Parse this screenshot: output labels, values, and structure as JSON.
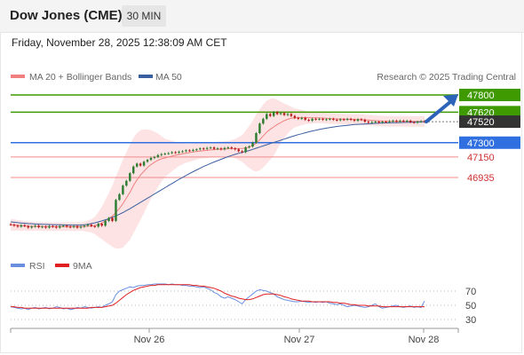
{
  "header": {
    "title": "Dow Jones (CME)",
    "interval": "30 MIN",
    "datetime": "Friday, November 28, 2025 12:38:09 AM CET"
  },
  "legend": {
    "ma20_label": "MA 20 + Bollinger Bands",
    "ma50_label": "MA 50",
    "copyright": "Research © 2025 Trading Central",
    "rsi_label": "RSI",
    "nine_ma_label": "9MA"
  },
  "colors": {
    "ma20": "#f08080",
    "ma50": "#3a5fa0",
    "bands_fill": "#fde3e3",
    "resistance": "#3e9a00",
    "support_blue": "#2f6fe0",
    "support_red": "#f08a8a",
    "price_tag": "#333333",
    "arrow": "#2b63b8",
    "rsi": "#6a8fe0",
    "nine_ma": "#e02020",
    "candle_up": "#2e7d32",
    "candle_down": "#b71c1c"
  },
  "chart_data": [
    {
      "type": "candlestick",
      "ylim": [
        46300,
        48050
      ],
      "x_ticks": [
        "Nov 26",
        "Nov 27",
        "Nov 28"
      ],
      "levels": [
        {
          "value": 47800,
          "label": "47800",
          "kind": "resistance"
        },
        {
          "value": 47620,
          "label": "47620",
          "kind": "resistance"
        },
        {
          "value": 47520,
          "label": "47520",
          "kind": "last-price"
        },
        {
          "value": 47300,
          "label": "47300",
          "kind": "pivot"
        },
        {
          "value": 47150,
          "label": "47150",
          "kind": "support"
        },
        {
          "value": 46935,
          "label": "46935",
          "kind": "support"
        }
      ],
      "close": [
        46440,
        46430,
        46420,
        46435,
        46425,
        46410,
        46420,
        46430,
        46415,
        46420,
        46410,
        46425,
        46420,
        46410,
        46425,
        46430,
        46420,
        46415,
        46425,
        46410,
        46420,
        46430,
        46440,
        46425,
        46420,
        46450,
        46430,
        46480,
        46510,
        46480,
        46700,
        46760,
        46850,
        46900,
        46980,
        47050,
        47080,
        47060,
        47100,
        47120,
        47140,
        47150,
        47170,
        47180,
        47185,
        47190,
        47200,
        47195,
        47205,
        47210,
        47220,
        47215,
        47225,
        47230,
        47240,
        47235,
        47245,
        47250,
        47235,
        47240,
        47230,
        47245,
        47250,
        47240,
        47230,
        47210,
        47200,
        47250,
        47260,
        47300,
        47400,
        47500,
        47550,
        47600,
        47580,
        47620,
        47600,
        47610,
        47590,
        47600,
        47580,
        47560,
        47550,
        47560,
        47540,
        47530,
        47550,
        47545,
        47550,
        47540,
        47545,
        47550,
        47540,
        47535,
        47545,
        47540,
        47550,
        47540,
        47530,
        47545,
        47540,
        47520,
        47510,
        47515,
        47520,
        47510,
        47520,
        47515,
        47525,
        47530,
        47520,
        47530,
        47525,
        47530,
        47515,
        47510,
        47520,
        47525,
        47520
      ],
      "ma20": [
        46440,
        46438,
        46434,
        46430,
        46428,
        46425,
        46423,
        46422,
        46422,
        46421,
        46420,
        46420,
        46420,
        46419,
        46419,
        46420,
        46420,
        46420,
        46420,
        46420,
        46421,
        46422,
        46425,
        46428,
        46432,
        46442,
        46458,
        46480,
        46505,
        46530,
        46570,
        46610,
        46660,
        46720,
        46780,
        46850,
        46910,
        46960,
        47000,
        47040,
        47070,
        47095,
        47115,
        47130,
        47140,
        47150,
        47160,
        47168,
        47176,
        47183,
        47190,
        47196,
        47202,
        47208,
        47212,
        47216,
        47220,
        47224,
        47227,
        47230,
        47232,
        47234,
        47236,
        47238,
        47238,
        47238,
        47240,
        47245,
        47255,
        47270,
        47295,
        47330,
        47370,
        47410,
        47440,
        47465,
        47490,
        47510,
        47530,
        47545,
        47555,
        47560,
        47562,
        47563,
        47563,
        47562,
        47561,
        47560,
        47559,
        47557,
        47555,
        47553,
        47551,
        47549,
        47548,
        47546,
        47545,
        47544,
        47543,
        47542,
        47541,
        47539,
        47536,
        47533,
        47530,
        47528,
        47526,
        47525,
        47524,
        47524,
        47524,
        47524,
        47524,
        47524,
        47523,
        47522,
        47522,
        47522,
        47522
      ],
      "band_width": [
        60,
        60,
        55,
        55,
        50,
        50,
        48,
        45,
        45,
        45,
        45,
        45,
        45,
        45,
        45,
        45,
        45,
        45,
        45,
        45,
        45,
        50,
        60,
        70,
        90,
        130,
        170,
        220,
        270,
        320,
        380,
        420,
        460,
        480,
        500,
        500,
        490,
        470,
        440,
        400,
        360,
        320,
        280,
        240,
        200,
        180,
        160,
        140,
        120,
        110,
        100,
        95,
        90,
        85,
        80,
        80,
        80,
        80,
        80,
        80,
        80,
        80,
        80,
        90,
        100,
        120,
        140,
        180,
        220,
        260,
        300,
        320,
        330,
        330,
        320,
        300,
        260,
        220,
        180,
        150,
        120,
        100,
        90,
        80,
        70,
        65,
        60,
        58,
        55,
        55,
        55,
        55,
        55,
        55,
        55,
        55,
        55,
        55,
        55,
        55,
        55,
        55,
        55,
        55,
        55,
        55,
        55,
        55,
        55,
        55,
        55,
        55,
        55,
        55,
        55,
        55,
        55,
        55,
        55
      ],
      "ma50": [
        46470,
        46466,
        46462,
        46458,
        46455,
        46452,
        46450,
        46448,
        46446,
        46444,
        46443,
        46442,
        46441,
        46440,
        46439,
        46438,
        46437,
        46436,
        46436,
        46436,
        46437,
        46440,
        46445,
        46452,
        46460,
        46470,
        46480,
        46492,
        46504,
        46518,
        46533,
        46550,
        46568,
        46588,
        46608,
        46630,
        46652,
        46674,
        46696,
        46718,
        46740,
        46762,
        46784,
        46806,
        46828,
        46850,
        46872,
        46894,
        46916,
        46936,
        46956,
        46976,
        46995,
        47014,
        47032,
        47050,
        47066,
        47082,
        47098,
        47112,
        47126,
        47140,
        47154,
        47166,
        47178,
        47188,
        47198,
        47208,
        47218,
        47230,
        47242,
        47254,
        47266,
        47278,
        47290,
        47302,
        47314,
        47326,
        47338,
        47350,
        47362,
        47373,
        47384,
        47394,
        47404,
        47414,
        47422,
        47430,
        47438,
        47446,
        47452,
        47458,
        47464,
        47470,
        47474,
        47478,
        47482,
        47486,
        47490,
        47492,
        47494,
        47496,
        47498,
        47500,
        47502,
        47504,
        47506,
        47507,
        47508,
        47509,
        47510,
        47511,
        47512,
        47513,
        47514,
        47515,
        47516,
        47517,
        47518
      ]
    },
    {
      "type": "line",
      "ylim": [
        20,
        85
      ],
      "y_ticks": [
        70,
        50,
        30
      ],
      "series": [
        {
          "name": "RSI",
          "values": [
            48,
            47,
            46,
            45,
            46,
            44,
            46,
            47,
            45,
            46,
            47,
            45,
            46,
            48,
            47,
            45,
            46,
            44,
            45,
            47,
            46,
            48,
            47,
            46,
            47,
            48,
            47,
            50,
            52,
            55,
            65,
            70,
            72,
            74,
            76,
            75,
            77,
            78,
            78,
            79,
            79,
            80,
            80,
            80,
            80,
            79,
            80,
            79,
            79,
            78,
            78,
            77,
            77,
            76,
            75,
            76,
            74,
            72,
            68,
            66,
            62,
            60,
            62,
            60,
            58,
            55,
            52,
            58,
            62,
            66,
            70,
            72,
            71,
            70,
            68,
            66,
            62,
            60,
            58,
            57,
            56,
            55,
            55,
            56,
            55,
            54,
            55,
            54,
            55,
            54,
            55,
            53,
            52,
            51,
            52,
            50,
            48,
            49,
            50,
            49,
            48,
            47,
            48,
            50,
            52,
            48,
            46,
            47,
            48,
            49,
            50,
            48,
            47,
            48,
            49,
            47,
            48,
            47,
            56
          ]
        },
        {
          "name": "9MA",
          "values": [
            48,
            48,
            47,
            47,
            46,
            46,
            46,
            46,
            46,
            46,
            46,
            46,
            46,
            46,
            46,
            46,
            46,
            46,
            46,
            46,
            46,
            46,
            46,
            47,
            47,
            47,
            47,
            48,
            49,
            50,
            53,
            57,
            61,
            65,
            68,
            71,
            73,
            75,
            76,
            77,
            78,
            78,
            79,
            79,
            79,
            79,
            79,
            79,
            79,
            79,
            79,
            79,
            78,
            78,
            77,
            77,
            76,
            75,
            74,
            72,
            70,
            67,
            65,
            63,
            62,
            60,
            59,
            58,
            58,
            59,
            61,
            63,
            65,
            66,
            66,
            66,
            65,
            64,
            62,
            61,
            59,
            58,
            57,
            56,
            56,
            56,
            55,
            55,
            55,
            55,
            55,
            55,
            54,
            54,
            53,
            53,
            52,
            51,
            51,
            50,
            50,
            50,
            49,
            49,
            49,
            49,
            48,
            48,
            48,
            48,
            48,
            48,
            48,
            48,
            48,
            48,
            48,
            48,
            48
          ]
        }
      ]
    }
  ]
}
